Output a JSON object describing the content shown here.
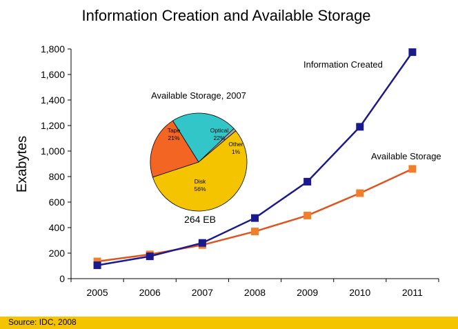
{
  "chart_data": [
    {
      "type": "line",
      "title": "Information Creation and Available Storage",
      "ylabel": "Exabytes",
      "xlabel": "",
      "x": [
        "2005",
        "2006",
        "2007",
        "2008",
        "2009",
        "2010",
        "2011"
      ],
      "ylim": [
        0,
        1800
      ],
      "yticks": [
        "0",
        "200",
        "400",
        "600",
        "800",
        "1,000",
        "1,200",
        "1,400",
        "1,600",
        "1,800"
      ],
      "grid": false,
      "series": [
        {
          "name": "Information Created",
          "color": "#1a1a8c",
          "marker": "square",
          "values": [
            105,
            175,
            280,
            475,
            760,
            1190,
            1775
          ]
        },
        {
          "name": "Available Storage",
          "color": "#e0531e",
          "marker_color": "#f07f2c",
          "marker": "square",
          "values": [
            135,
            190,
            264,
            370,
            495,
            670,
            860
          ]
        }
      ]
    },
    {
      "type": "pie",
      "title": "Available Storage, 2007",
      "total_label": "264 EB",
      "slices": [
        {
          "label": "Tape",
          "pct_label": "21%",
          "value": 21,
          "color": "#f26522"
        },
        {
          "label": "Optical",
          "pct_label": "22%",
          "value": 22,
          "color": "#33c6c9"
        },
        {
          "label": "Other",
          "pct_label": "1%",
          "value": 1,
          "color": "#a6a6a6"
        },
        {
          "label": "Disk",
          "pct_label": "56%",
          "value": 56,
          "color": "#f5c400"
        }
      ]
    }
  ],
  "footer": {
    "source": "Source: IDC, 2008",
    "bar_color": "#f5c400"
  }
}
